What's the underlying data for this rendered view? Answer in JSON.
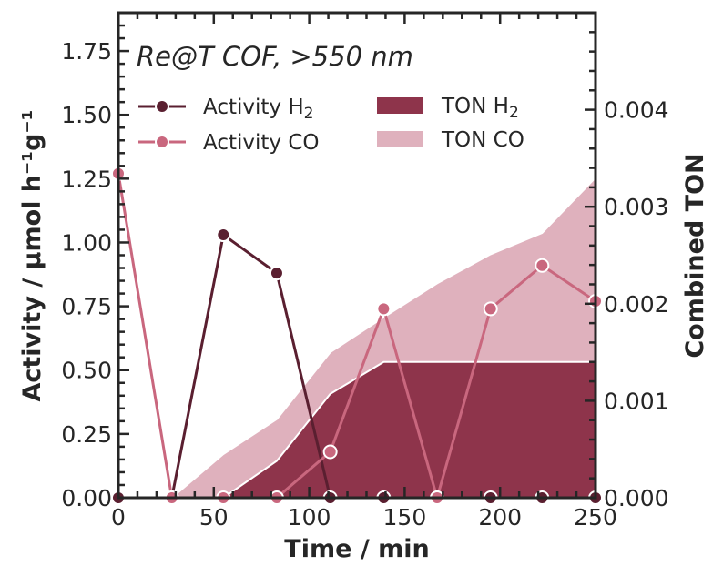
{
  "chart_data": {
    "type": "line",
    "title": "Re@T COF, >550 nm",
    "xlabel": "Time / min",
    "ylabel_left": "Activity / μmol h⁻¹g⁻¹",
    "ylabel_right": "Combined TON",
    "xlim": [
      0,
      250
    ],
    "ylim_left": [
      0,
      1.9
    ],
    "ylim_right": [
      0,
      0.005
    ],
    "x_ticks": [
      0,
      50,
      100,
      150,
      200,
      250
    ],
    "x_tick_labels": [
      "0",
      "50",
      "100",
      "150",
      "200",
      "250"
    ],
    "y_left_ticks": [
      0,
      0.25,
      0.5,
      0.75,
      1.0,
      1.25,
      1.5,
      1.75
    ],
    "y_left_tick_labels": [
      "0.00",
      "0.25",
      "0.50",
      "0.75",
      "1.00",
      "1.25",
      "1.50",
      "1.75"
    ],
    "y_right_ticks": [
      0,
      0.001,
      0.002,
      0.003,
      0.004
    ],
    "y_right_tick_labels": [
      "0.000",
      "0.001",
      "0.002",
      "0.003",
      "0.004"
    ],
    "legend_position": "top",
    "series": [
      {
        "name": "Activity H2",
        "legend_label": "Activity H",
        "legend_sub": "2",
        "kind": "line",
        "axis": "left",
        "color": "#5a1f30",
        "x": [
          0,
          28,
          55,
          83,
          111,
          139,
          167,
          195,
          222,
          250
        ],
        "y": [
          0.0,
          0.0,
          1.03,
          0.88,
          0.0,
          0.0,
          0.0,
          0.0,
          0.0,
          0.0
        ]
      },
      {
        "name": "Activity CO",
        "legend_label": "Activity CO",
        "legend_sub": "",
        "kind": "line",
        "axis": "left",
        "color": "#c9677e",
        "x": [
          0,
          28,
          55,
          83,
          111,
          139,
          167,
          195,
          222,
          250
        ],
        "y": [
          1.27,
          0.0,
          0.0,
          0.0,
          0.18,
          0.74,
          0.0,
          0.74,
          0.91,
          0.77
        ]
      },
      {
        "name": "TON H2",
        "legend_label": "TON H",
        "legend_sub": "2",
        "kind": "area",
        "axis": "right",
        "color": "#8e344b",
        "x": [
          28,
          55,
          83,
          111,
          139,
          167,
          195,
          222,
          250
        ],
        "y": [
          0.0,
          0.0,
          0.00038,
          0.00107,
          0.0014,
          0.0014,
          0.0014,
          0.0014,
          0.0014
        ]
      },
      {
        "name": "TON CO",
        "legend_label": "TON CO",
        "legend_sub": "",
        "kind": "area",
        "axis": "right",
        "color": "#dfb1bd",
        "x": [
          28,
          55,
          83,
          111,
          139,
          167,
          195,
          222,
          250
        ],
        "y": [
          0.0,
          0.00045,
          0.00081,
          0.0015,
          0.00186,
          0.00221,
          0.00251,
          0.00273,
          0.0033
        ]
      }
    ]
  }
}
